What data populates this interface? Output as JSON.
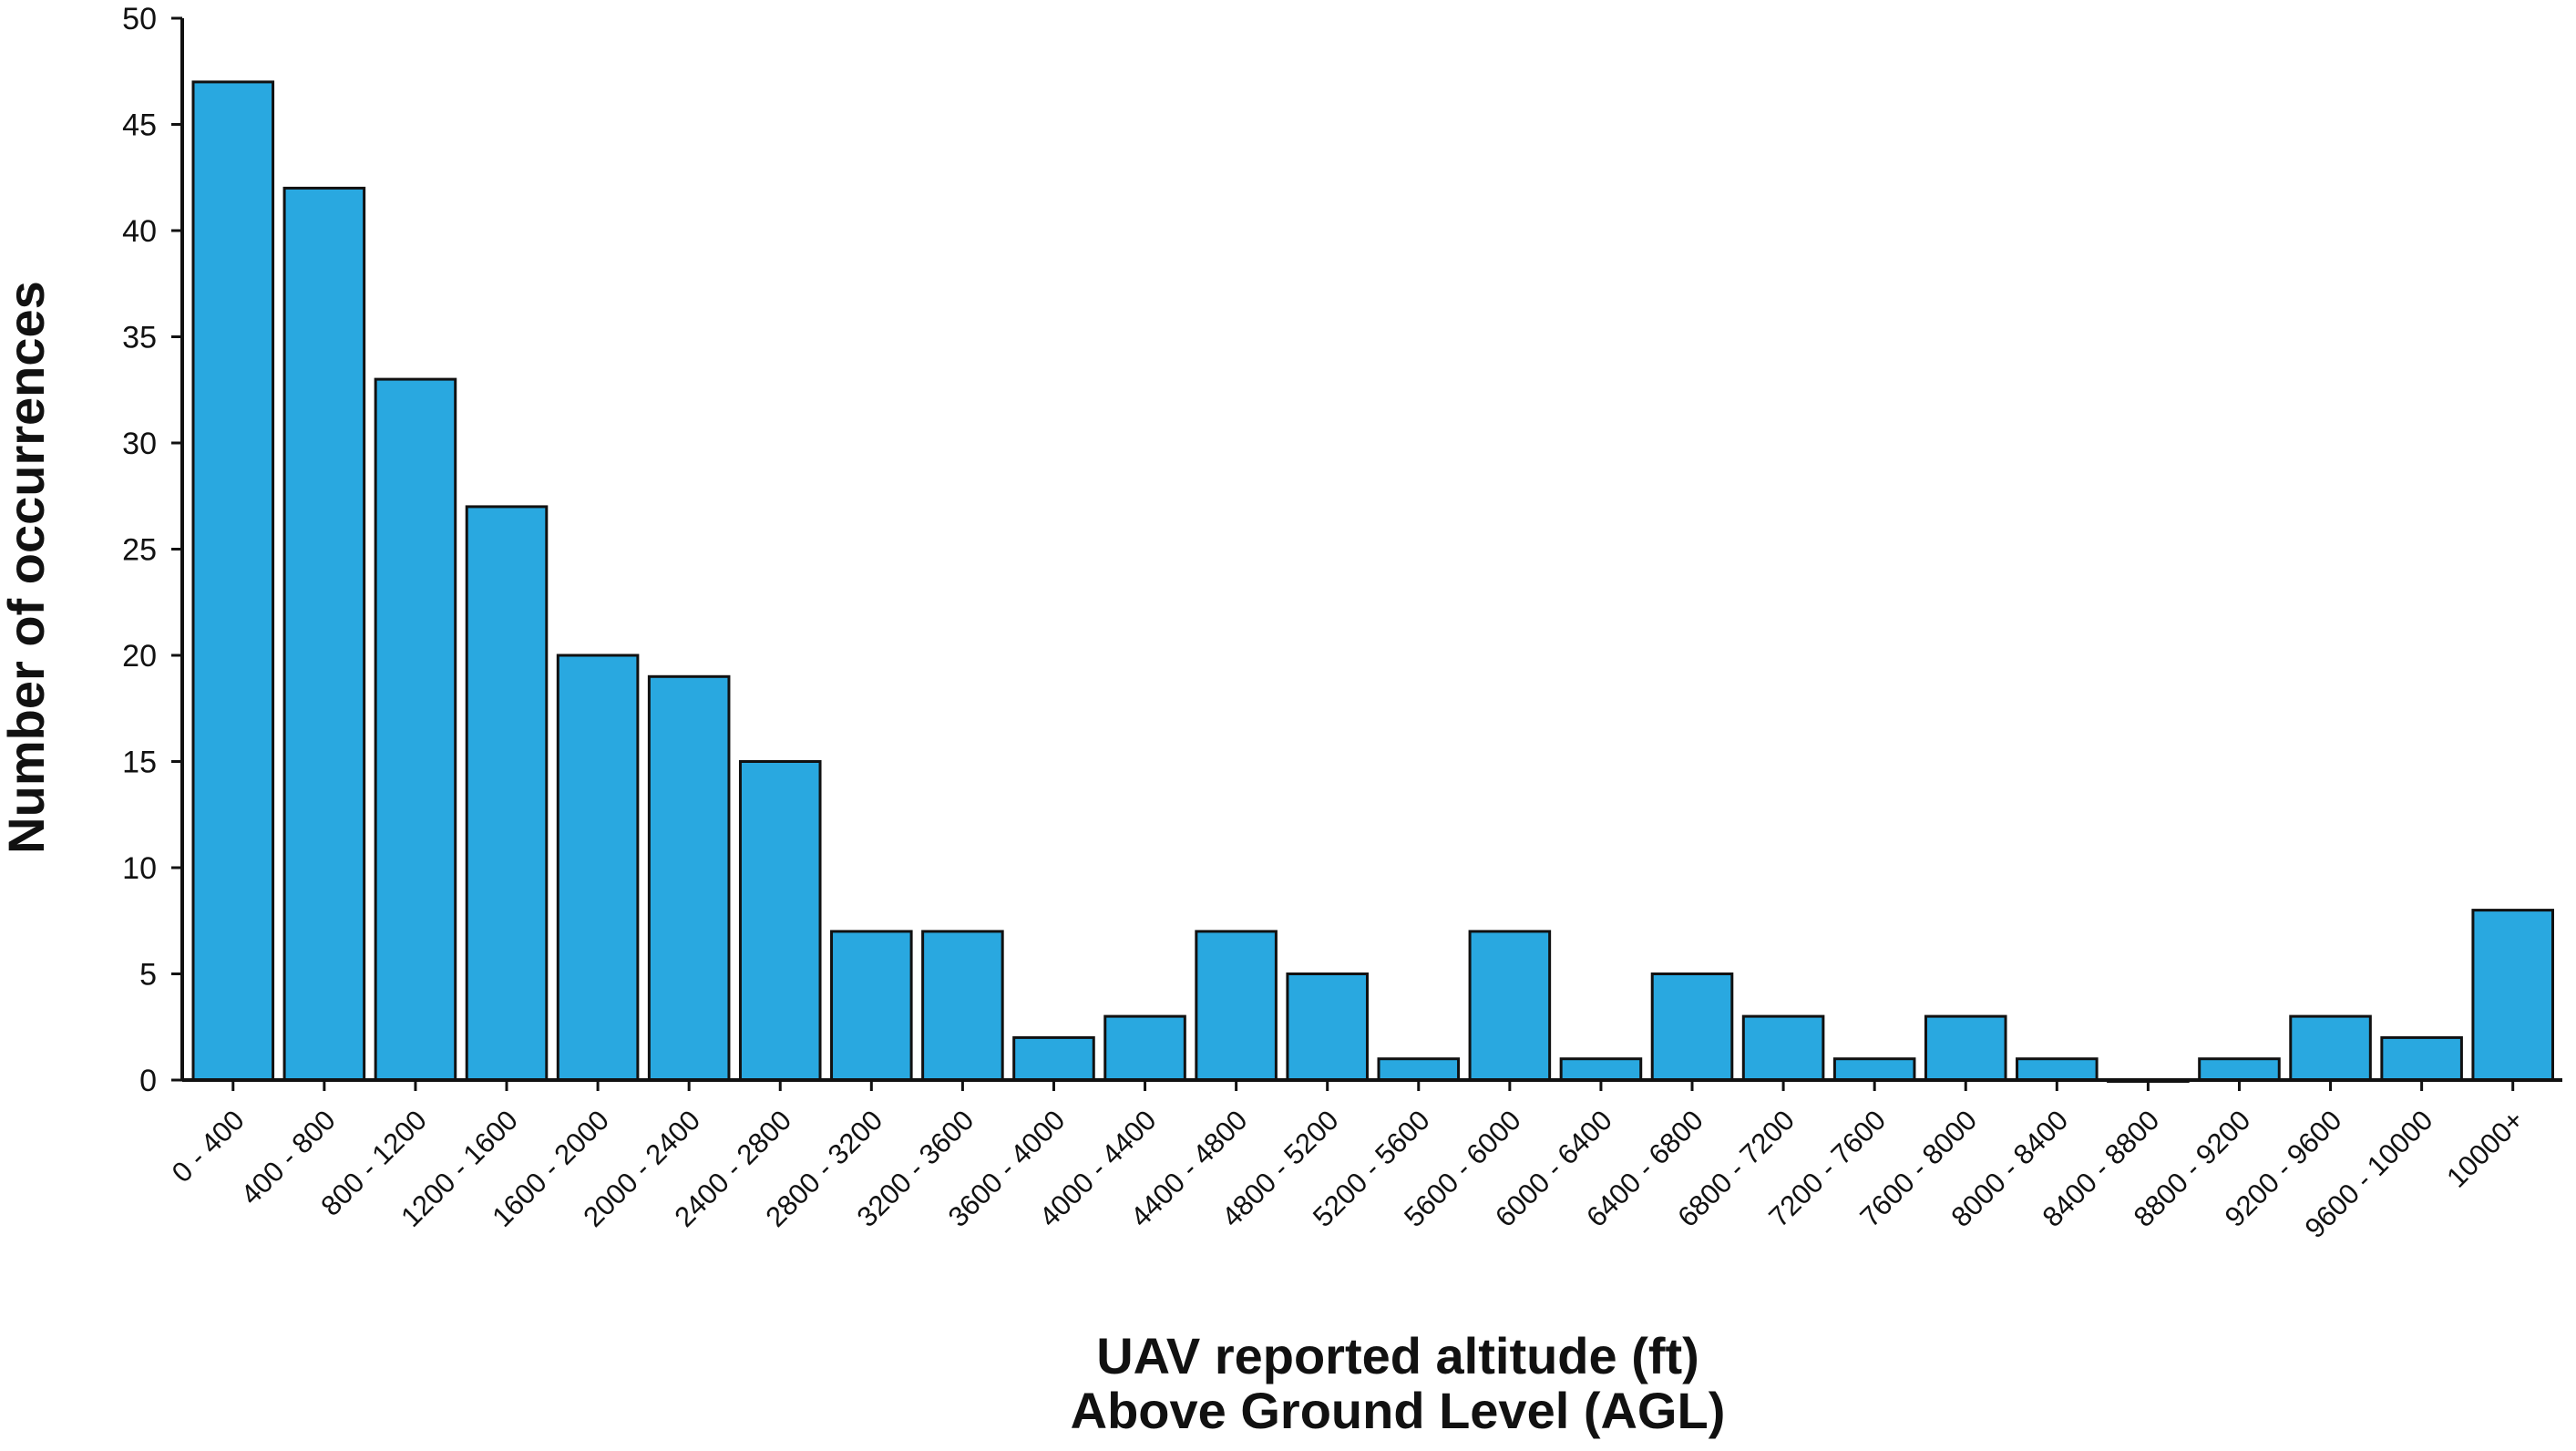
{
  "chart_data": {
    "type": "bar",
    "title": "",
    "ylabel": "Number of occurrences",
    "xlabel_lines": [
      "UAV reported altitude (ft)",
      "Above Ground Level (AGL)"
    ],
    "categories": [
      "0 - 400",
      "400 - 800",
      "800 - 1200",
      "1200 - 1600",
      "1600 - 2000",
      "2000 - 2400",
      "2400 - 2800",
      "2800 - 3200",
      "3200 - 3600",
      "3600 - 4000",
      "4000 - 4400",
      "4400 - 4800",
      "4800 - 5200",
      "5200 - 5600",
      "5600 - 6000",
      "6000 - 6400",
      "6400 - 6800",
      "6800 - 7200",
      "7200 - 7600",
      "7600 - 8000",
      "8000 - 8400",
      "8400 - 8800",
      "8800 - 9200",
      "9200 - 9600",
      "9600 - 10000",
      "10000+"
    ],
    "values": [
      47,
      42,
      33,
      27,
      20,
      19,
      15,
      7,
      7,
      2,
      3,
      7,
      5,
      1,
      7,
      1,
      5,
      3,
      1,
      3,
      1,
      0,
      1,
      3,
      2,
      8
    ],
    "ylim": [
      0,
      50
    ],
    "yticks": [
      "0",
      "5",
      "10",
      "15",
      "20",
      "25",
      "30",
      "35",
      "40",
      "45",
      "50"
    ],
    "bar_color": "#29a8e0",
    "grid": false,
    "legend": "none"
  }
}
